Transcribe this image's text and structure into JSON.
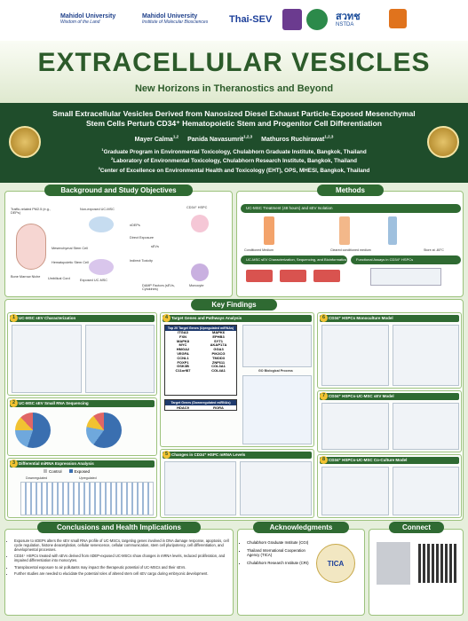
{
  "header": {
    "logos": [
      {
        "name": "Mahidol University",
        "tagline": "Wisdom of the Land"
      },
      {
        "name": "Mahidol University",
        "tagline": "Institute of Molecular Biosciences"
      },
      {
        "name": "Thai-SEV"
      },
      {
        "name": "สวทช",
        "tagline": "NSTDA"
      }
    ]
  },
  "banner": {
    "title": "EXTRACELLULAR VESICLES",
    "subtitle": "New Horizons in Theranostics and Beyond"
  },
  "paper": {
    "title": "Small Extracellular Vesicles Derived from Nanosized Diesel Exhaust Particle-Exposed Mesenchymal Stem Cells Perturb CD34⁺ Hematopoietic Stem and Progenitor Cell Differentiation",
    "authors": [
      {
        "name": "Mayer Calma",
        "affil": "1,2"
      },
      {
        "name": "Panida Navasumrit",
        "affil": "1,2,3"
      },
      {
        "name": "Mathuros Ruchirawat",
        "affil": "1,2,3"
      }
    ],
    "affiliations": [
      {
        "num": "1",
        "text": "Graduate Program in Environmental Toxicology, Chulabhorn Graduate Institute, Bangkok, Thailand"
      },
      {
        "num": "2",
        "text": "Laboratory of Environmental Toxicology, Chulabhorn Research Institute, Bangkok, Thailand"
      },
      {
        "num": "3",
        "text": "Center of Excellence on Environmental Health and Toxicology (EHT), OPS, MHESI, Bangkok, Thailand"
      }
    ]
  },
  "background": {
    "heading": "Background and Study Objectives",
    "labels": [
      "Traffic-related PM2.5 (e.g., DEPs)",
      "Bone Marrow Niche",
      "Umbilical Cord",
      "Mesenchymal Stem Cell",
      "Hematopoietic Stem Cell",
      "Non-exposed UC-MSC",
      "Exposed UC-MSC",
      "nDEPs",
      "Direct Exposure",
      "Indirect Toxicity",
      "sEVs",
      "CD34⁺ HSPC",
      "DAMP Factors (sEVs, Cytokines)",
      "Monocyte"
    ]
  },
  "methods": {
    "heading": "Methods",
    "steps": [
      "UC-MSC Treatment (48 hours) and sEV Isolation",
      "UC-MSC sEV Characterization, Sequencing, and Bioinformatics",
      "Functional Assays in CD34⁺ HSPCs"
    ],
    "labels": [
      "Conditioned Medium",
      "Cleared conditioned medium",
      "Store at -80°C"
    ]
  },
  "key_findings": {
    "heading": "Key Findings",
    "panels": [
      {
        "number": "1",
        "title": "UC-MSC sEV Characterization"
      },
      {
        "number": "2",
        "title": "UC-MSC sEV Small RNA Sequencing"
      },
      {
        "number": "3",
        "title": "Differential miRNA Expression Analysis"
      },
      {
        "number": "4",
        "title": "Target Genes and Pathways Analysis"
      },
      {
        "number": "5",
        "title": "Changes in CD34⁺ HSPC mRNA Levels"
      },
      {
        "number": "6",
        "title": "CD34⁺ HSPCs Monoculture Model"
      },
      {
        "number": "7",
        "title": "CD34⁺ HSPCs-UC-MSC sEV Model"
      },
      {
        "number": "8",
        "title": "CD34⁺ HSPCs-UC-MSC Co-Culture Model"
      }
    ],
    "legend": [
      "Control",
      "Exposed"
    ],
    "regulation": [
      "Downregulated",
      "Upregulated"
    ],
    "up_title": "Top 20 Target Genes (Upregulated miRNAs)",
    "up_genes": [
      "ITGA3",
      "MAPK6",
      "FXN",
      "EPHB3",
      "MAPK8",
      "SYT1",
      "MYC",
      "AKAP17A",
      "HMGA2",
      "GGA3",
      "VEGFA",
      "PIK3CG",
      "CCNL1",
      "TMOD3",
      "FOXP1",
      "ZNF611",
      "GSK3B",
      "COL3A1",
      "C11orf87",
      "COL4A1"
    ],
    "down_title": "Target Genes (Downregulated miRNAs)",
    "down_genes": [
      "HDAC9",
      "RORA"
    ],
    "go_title": "GO Biological Process"
  },
  "conclusions": {
    "heading": "Conclusions and Health Implications",
    "bullets": [
      "Exposure to nDEPs alters the sEV small RNA profile of UC-MSCs, targeting genes involved in DNA damage response, apoptosis, cell cycle regulation, histone deacetylation, cellular senescence, cellular communication, stem cell pluripotency, cell differentiation, and developmental processes.",
      "CD34⁺ HSPCs treated with sEVs derived from nDEP-exposed UC-MSCs show changes in mRNA levels, reduced proliferation, and impaired differentiation into monocytes.",
      "Transplacental exposure to air pollutants may impact the therapeutic potential of UC-MSCs and their sEVs.",
      "Further studies are needed to elucidate the potential roles of altered stem cell sEV cargo during embryonic development."
    ]
  },
  "acknowledgments": {
    "heading": "Acknowledgments",
    "items": [
      "Chulabhorn Graduate Institute (CGI)",
      "Thailand International Cooperation Agency (TICA)",
      "Chulabhorn Research Institute (CRI)"
    ],
    "logo": "TICA"
  },
  "connect": {
    "heading": "Connect"
  }
}
